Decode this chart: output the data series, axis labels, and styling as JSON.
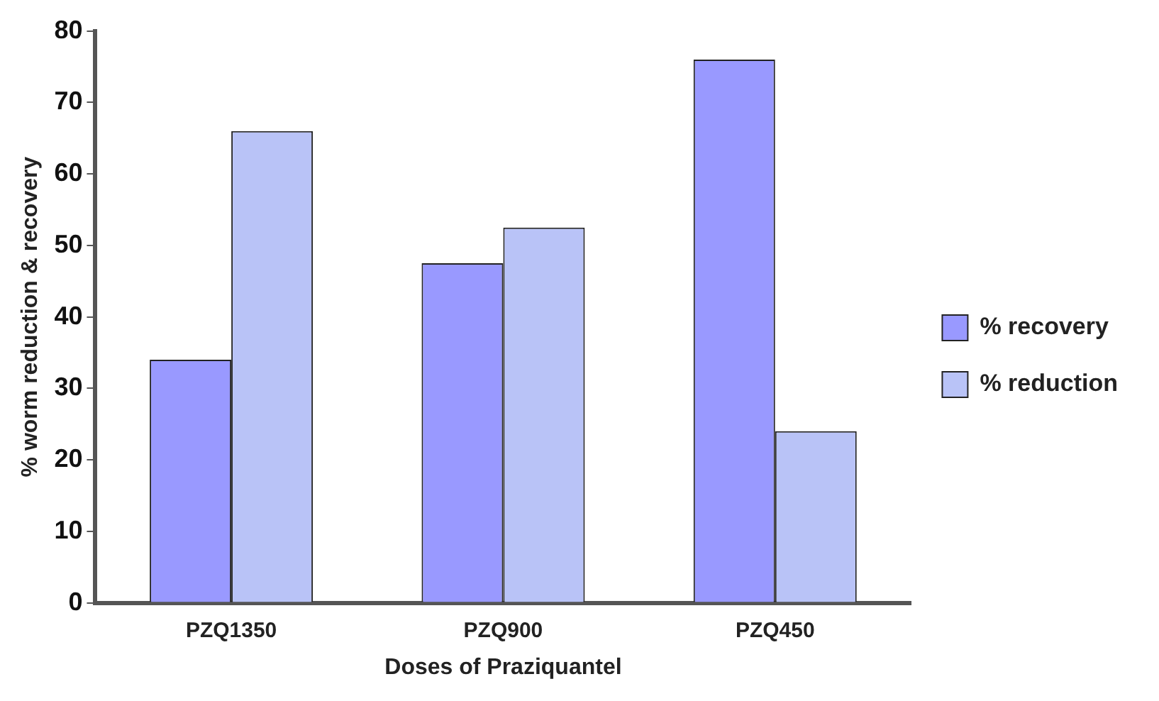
{
  "chart_data": {
    "type": "bar",
    "xlabel": "Doses of Praziquantel",
    "ylabel": "% worm reduction & recovery",
    "categories": [
      "PZQ1350",
      "PZQ900",
      "PZQ450"
    ],
    "series": [
      {
        "name": "% recovery",
        "color": "#9999ff",
        "values": [
          34,
          47.5,
          76
        ]
      },
      {
        "name": "% reduction",
        "color": "#b9c3f7",
        "values": [
          66,
          52.5,
          24
        ]
      }
    ],
    "ylim": [
      0,
      80
    ],
    "yticks": [
      0,
      10,
      20,
      30,
      40,
      50,
      60,
      70,
      80
    ],
    "grid": false,
    "legend": "right"
  }
}
